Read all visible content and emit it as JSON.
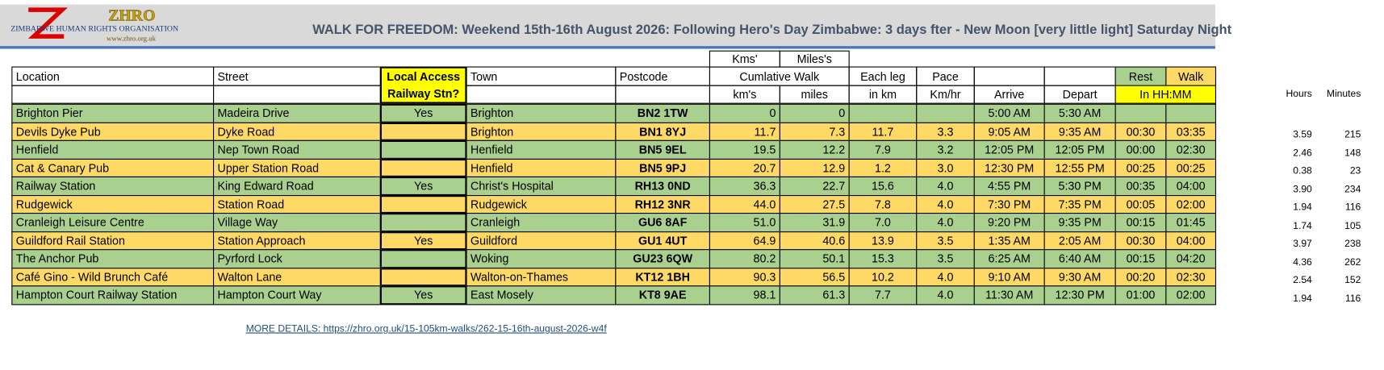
{
  "header": {
    "logo": {
      "abbr": "ZHRO",
      "name": "ZIMBABWE HUMAN RIGHTS ORGANISATION",
      "url": "www.zhro.org.uk"
    },
    "title": "WALK FOR FREEDOM: Weekend 15th-16th August 2026:  Following Hero's Day Zimbabwe: 3 days fter - New Moon [very little light] Saturday Night"
  },
  "table": {
    "units_row": [
      "Kms'",
      "Miles's"
    ],
    "header_row": [
      "Location",
      "Street",
      "Local Access Railway Stn?",
      "Town",
      "Postcode",
      "Cumlative Walk",
      "Each leg",
      "Pace",
      "Rest",
      "Walk"
    ],
    "subheader_row": [
      "km's",
      "miles",
      "in km",
      "Km/hr",
      "Arrive",
      "Depart",
      "In HH:MM"
    ],
    "extra_headers": [
      "Hours",
      "Minutes"
    ],
    "rows": [
      [
        "Brighton Pier",
        "Madeira Drive",
        "Yes",
        "Brighton",
        "BN2 1TW",
        "0",
        "0",
        null,
        null,
        "5:00 AM",
        "5:30 AM",
        null,
        null,
        null,
        null
      ],
      [
        "Devils Dyke Pub",
        "Dyke Road",
        null,
        "Brighton",
        "BN1 8YJ",
        "11.7",
        "7.3",
        "11.7",
        "3.3",
        "9:05 AM",
        "9:35 AM",
        "00:30",
        "03:35",
        "3.59",
        "215"
      ],
      [
        "Henfield",
        "Nep Town Road",
        null,
        "Henfield",
        "BN5 9EL",
        "19.5",
        "12.2",
        "7.9",
        "3.2",
        "12:05 PM",
        "12:05 PM",
        "00:00",
        "02:30",
        "2.46",
        "148"
      ],
      [
        "Cat & Canary Pub",
        "Upper Station Road",
        null,
        "Henfield",
        "BN5 9PJ",
        "20.7",
        "12.9",
        "1.2",
        "3.0",
        "12:30 PM",
        "12:55 PM",
        "00:25",
        "00:25",
        "0.38",
        "23"
      ],
      [
        "Railway Station",
        "King Edward Road",
        "Yes",
        "Christ's Hospital",
        "RH13 0ND",
        "36.3",
        "22.7",
        "15.6",
        "4.0",
        "4:55 PM",
        "5:30 PM",
        "00:35",
        "04:00",
        "3.90",
        "234"
      ],
      [
        "Rudgewick",
        "Station Road",
        null,
        "Rudgewick",
        "RH12 3NR",
        "44.0",
        "27.5",
        "7.8",
        "4.0",
        "7:30 PM",
        "7:35 PM",
        "00:05",
        "02:00",
        "1.94",
        "116"
      ],
      [
        "Cranleigh Leisure Centre",
        "Village Way",
        null,
        "Cranleigh",
        "GU6 8AF",
        "51.0",
        "31.9",
        "7.0",
        "4.0",
        "9:20 PM",
        "9:35 PM",
        "00:15",
        "01:45",
        "1.74",
        "105"
      ],
      [
        "Guildford Rail Station",
        "Station Approach",
        "Yes",
        "Guildford",
        "GU1 4UT",
        "64.9",
        "40.6",
        "13.9",
        "3.5",
        "1:35 AM",
        "2:05 AM",
        "00:30",
        "04:00",
        "3.97",
        "238"
      ],
      [
        "The Anchor Pub",
        "Pyrford Lock",
        null,
        "Woking",
        "GU23 6QW",
        "80.2",
        "50.1",
        "15.3",
        "3.5",
        "6:25 AM",
        "6:40 AM",
        "00:15",
        "04:20",
        "4.36",
        "262"
      ],
      [
        "Café Gino - Wild Brunch Café",
        "Walton Lane",
        null,
        "Walton-on-Thames",
        "KT12 1BH",
        "90.3",
        "56.5",
        "10.2",
        "4.0",
        "9:10 AM",
        "9:30 AM",
        "00:20",
        "02:30",
        "2.54",
        "152"
      ],
      [
        "Hampton Court Railway Station",
        "Hampton Court Way",
        "Yes",
        "East Mosely",
        "KT8 9AE",
        "98.1",
        "61.3",
        "7.7",
        "4.0",
        "11:30 AM",
        "12:30 PM",
        "01:00",
        "02:00",
        "1.94",
        "116"
      ]
    ]
  },
  "link": "MORE DETAILS: https://zhro.org.uk/15-105km-walks/262-15-16th-august-2026-w4f"
}
